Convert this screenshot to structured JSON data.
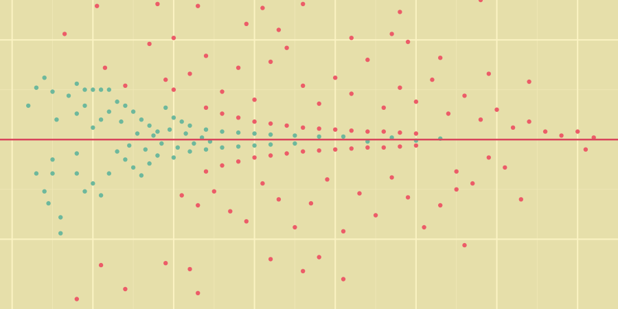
{
  "colors": {
    "background": "#e6dfaa",
    "grid_major": "#fbf3c3",
    "grid_minor": "#eee6b4",
    "significant": "#ec5c68",
    "not_significant": "#6db89c",
    "reference_line": "#d9455c"
  },
  "chart_data": {
    "type": "scatter",
    "title": "",
    "xlabel": "",
    "ylabel": "",
    "grid": true,
    "xlim": [
      -0.15,
      7.5
    ],
    "ylim": [
      -8.5,
      7.0
    ],
    "x_major_grid": [
      0,
      1,
      2,
      3,
      4,
      5,
      6,
      7
    ],
    "y_major_grid": [
      -5,
      0,
      5
    ],
    "reference_line_y": 0,
    "series": [
      {
        "color_key": "not_significant",
        "points": [
          [
            0.2,
            1.7
          ],
          [
            0.3,
            2.6
          ],
          [
            0.4,
            3.1
          ],
          [
            0.5,
            2.4
          ],
          [
            0.55,
            1.0
          ],
          [
            0.5,
            -1.0
          ],
          [
            0.5,
            -1.7
          ],
          [
            0.3,
            -1.7
          ],
          [
            0.4,
            -2.6
          ],
          [
            0.45,
            -3.2
          ],
          [
            0.6,
            -3.9
          ],
          [
            0.6,
            -4.7
          ],
          [
            0.7,
            2.2
          ],
          [
            0.8,
            2.8
          ],
          [
            0.9,
            2.5
          ],
          [
            1.0,
            2.5
          ],
          [
            1.1,
            2.5
          ],
          [
            1.2,
            2.5
          ],
          [
            0.8,
            1.3
          ],
          [
            0.9,
            1.7
          ],
          [
            1.0,
            0.6
          ],
          [
            1.1,
            1.0
          ],
          [
            1.2,
            1.4
          ],
          [
            0.8,
            -0.7
          ],
          [
            0.8,
            -1.7
          ],
          [
            0.9,
            -2.6
          ],
          [
            1.0,
            -2.2
          ],
          [
            1.1,
            -2.8
          ],
          [
            1.2,
            -1.7
          ],
          [
            1.3,
            1.9
          ],
          [
            1.4,
            1.7
          ],
          [
            1.5,
            1.4
          ],
          [
            1.6,
            1.0
          ],
          [
            1.7,
            0.7
          ],
          [
            1.8,
            0.4
          ],
          [
            1.3,
            -0.6
          ],
          [
            1.4,
            -1.0
          ],
          [
            1.5,
            -1.4
          ],
          [
            1.6,
            -1.8
          ],
          [
            1.7,
            -1.2
          ],
          [
            1.8,
            -0.8
          ],
          [
            1.9,
            1.6
          ],
          [
            2.0,
            1.1
          ],
          [
            2.1,
            0.9
          ],
          [
            2.2,
            0.7
          ],
          [
            2.0,
            -0.9
          ],
          [
            2.2,
            -0.6
          ],
          [
            2.4,
            0.5
          ],
          [
            2.6,
            0.4
          ],
          [
            2.8,
            0.35
          ],
          [
            3.0,
            0.3
          ],
          [
            3.2,
            0.25
          ],
          [
            3.5,
            0.2
          ],
          [
            2.4,
            -0.5
          ],
          [
            2.6,
            -0.4
          ],
          [
            2.8,
            -0.35
          ],
          [
            3.0,
            -0.3
          ],
          [
            3.2,
            -0.25
          ],
          [
            3.5,
            -0.2
          ],
          [
            3.8,
            0.15
          ],
          [
            4.1,
            0.15
          ],
          [
            4.4,
            -0.1
          ],
          [
            4.7,
            0.1
          ],
          [
            5.0,
            -0.05
          ],
          [
            5.3,
            0.05
          ],
          [
            1.35,
            0.9
          ],
          [
            1.45,
            -0.3
          ],
          [
            1.55,
            0.3
          ],
          [
            1.65,
            -0.5
          ],
          [
            1.75,
            0.2
          ],
          [
            1.85,
            -0.2
          ],
          [
            1.95,
            0.5
          ],
          [
            2.05,
            -0.4
          ],
          [
            2.15,
            0.3
          ],
          [
            2.25,
            -0.2
          ],
          [
            2.35,
            0.1
          ],
          [
            2.45,
            -0.1
          ]
        ]
      },
      {
        "color_key": "significant",
        "points": [
          [
            0.8,
            -8.0
          ],
          [
            0.65,
            5.3
          ],
          [
            1.05,
            6.7
          ],
          [
            1.8,
            6.8
          ],
          [
            2.3,
            6.7
          ],
          [
            3.1,
            6.6
          ],
          [
            3.6,
            6.8
          ],
          [
            4.8,
            6.4
          ],
          [
            5.8,
            7.0
          ],
          [
            1.15,
            3.6
          ],
          [
            1.4,
            2.7
          ],
          [
            1.1,
            -6.3
          ],
          [
            1.4,
            -7.5
          ],
          [
            1.9,
            -6.2
          ],
          [
            2.2,
            -6.5
          ],
          [
            2.3,
            -7.7
          ],
          [
            3.2,
            -6.0
          ],
          [
            3.6,
            -6.6
          ],
          [
            3.8,
            -5.9
          ],
          [
            4.1,
            -7.0
          ],
          [
            5.6,
            -5.3
          ],
          [
            6.3,
            -3.0
          ],
          [
            5.5,
            -2.5
          ],
          [
            1.7,
            4.8
          ],
          [
            2.0,
            5.1
          ],
          [
            2.9,
            5.8
          ],
          [
            3.3,
            5.5
          ],
          [
            4.2,
            5.1
          ],
          [
            4.7,
            5.3
          ],
          [
            4.9,
            4.9
          ],
          [
            5.3,
            4.1
          ],
          [
            5.9,
            3.3
          ],
          [
            6.4,
            2.9
          ],
          [
            7.0,
            0.4
          ],
          [
            7.2,
            0.1
          ],
          [
            7.1,
            -0.5
          ],
          [
            1.9,
            3.0
          ],
          [
            2.0,
            2.5
          ],
          [
            2.4,
            1.6
          ],
          [
            2.6,
            1.3
          ],
          [
            2.8,
            1.1
          ],
          [
            3.0,
            0.9
          ],
          [
            3.2,
            0.8
          ],
          [
            3.4,
            0.7
          ],
          [
            3.6,
            0.6
          ],
          [
            3.8,
            0.55
          ],
          [
            4.0,
            0.5
          ],
          [
            4.2,
            0.45
          ],
          [
            4.4,
            0.4
          ],
          [
            4.6,
            0.4
          ],
          [
            4.8,
            0.35
          ],
          [
            5.0,
            0.3
          ],
          [
            2.4,
            -1.6
          ],
          [
            2.6,
            -1.3
          ],
          [
            2.8,
            -1.1
          ],
          [
            3.0,
            -0.9
          ],
          [
            3.2,
            -0.8
          ],
          [
            3.4,
            -0.7
          ],
          [
            3.6,
            -0.6
          ],
          [
            3.8,
            -0.55
          ],
          [
            4.0,
            -0.5
          ],
          [
            4.2,
            -0.45
          ],
          [
            4.4,
            -0.4
          ],
          [
            4.6,
            -0.4
          ],
          [
            4.8,
            -0.35
          ],
          [
            5.0,
            -0.3
          ],
          [
            2.1,
            -2.8
          ],
          [
            2.3,
            -3.3
          ],
          [
            2.5,
            -2.6
          ],
          [
            2.7,
            -3.6
          ],
          [
            2.9,
            -4.1
          ],
          [
            3.1,
            -2.2
          ],
          [
            3.3,
            -3.0
          ],
          [
            3.5,
            -4.4
          ],
          [
            3.7,
            -3.2
          ],
          [
            3.9,
            -2.0
          ],
          [
            4.1,
            -4.6
          ],
          [
            4.3,
            -2.7
          ],
          [
            4.5,
            -3.8
          ],
          [
            4.7,
            -1.9
          ],
          [
            4.9,
            -2.9
          ],
          [
            5.1,
            -4.4
          ],
          [
            5.3,
            -3.3
          ],
          [
            5.5,
            -1.6
          ],
          [
            5.7,
            -2.2
          ],
          [
            5.9,
            -0.9
          ],
          [
            6.1,
            -1.4
          ],
          [
            2.2,
            3.3
          ],
          [
            2.4,
            4.2
          ],
          [
            2.6,
            2.4
          ],
          [
            2.8,
            3.6
          ],
          [
            3.0,
            2.0
          ],
          [
            3.2,
            3.9
          ],
          [
            3.4,
            4.6
          ],
          [
            3.6,
            2.7
          ],
          [
            3.8,
            1.8
          ],
          [
            4.0,
            3.1
          ],
          [
            4.2,
            2.3
          ],
          [
            4.4,
            4.0
          ],
          [
            4.6,
            1.6
          ],
          [
            4.8,
            2.6
          ],
          [
            5.0,
            1.9
          ],
          [
            5.2,
            3.0
          ],
          [
            5.4,
            1.3
          ],
          [
            5.6,
            2.2
          ],
          [
            5.8,
            1.0
          ],
          [
            6.0,
            1.5
          ],
          [
            6.2,
            0.6
          ],
          [
            6.4,
            0.9
          ],
          [
            6.6,
            0.4
          ],
          [
            6.8,
            0.2
          ]
        ]
      }
    ]
  }
}
